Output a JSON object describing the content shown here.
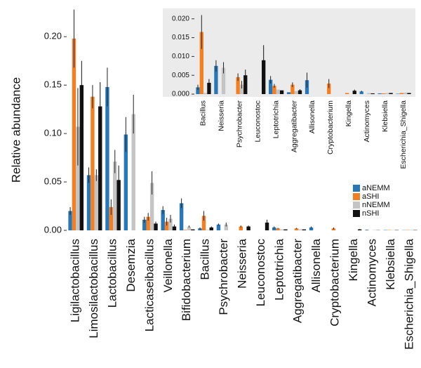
{
  "chart_data": [
    {
      "type": "bar",
      "y_label": "Relative abundance",
      "categories": [
        "Ligilactobacillus",
        "Limosilactobacillus",
        "Lactobacillus",
        "Desemzia",
        "Lacticaseibacillus",
        "Veillonella",
        "Bifidobacterium",
        "Bacillus",
        "Psychrobacter",
        "Neisseria",
        "Leuconostoc",
        "Leptotrichia",
        "Aggregatibacter",
        "Allisonella",
        "Cryptobacterium",
        "Kingella",
        "Actinomyces",
        "Klebsiella",
        "Escherichia_Shigella"
      ],
      "series": [
        {
          "name": "aNEMM",
          "color": "#2878b8",
          "values": [
            0.02,
            0.057,
            0.148,
            0.099,
            0.011,
            0.021,
            0.028,
            0.002,
            0.006,
            0,
            0,
            0.003,
            0,
            0.003,
            0,
            0,
            0.0005,
            0.0003,
            0.0002
          ],
          "errors": [
            0.004,
            0.008,
            0.02,
            0.018,
            0.003,
            0.004,
            0.005,
            0.001,
            0.001,
            0,
            0,
            0.001,
            0,
            0.001,
            0,
            0,
            0.0002,
            0,
            0
          ]
        },
        {
          "name": "aSHI",
          "color": "#f57f20",
          "values": [
            0.198,
            0.138,
            0.024,
            0,
            0.014,
            0.009,
            0.0005,
            0.015,
            0,
            0.004,
            0,
            0.002,
            0.002,
            0,
            0.002,
            0,
            0,
            0.0003,
            0.0003
          ],
          "errors": [
            0.03,
            0.012,
            0.008,
            0,
            0.004,
            0.004,
            0,
            0.005,
            0,
            0.001,
            0,
            0.0005,
            0.0005,
            0,
            0.001,
            0,
            0,
            0,
            0
          ]
        },
        {
          "name": "nNEMM",
          "color": "#c4c4c4",
          "values": [
            0.107,
            0.057,
            0.071,
            0.12,
            0.049,
            0.012,
            0.004,
            0.0005,
            0.006,
            0,
            0,
            0.001,
            0.001,
            0,
            0,
            0,
            0.0003,
            0.0003,
            0.0004
          ],
          "errors": [
            0.04,
            0.006,
            0.012,
            0.02,
            0.012,
            0.004,
            0.001,
            0,
            0.002,
            0,
            0,
            0,
            0,
            0,
            0,
            0,
            0,
            0,
            0
          ]
        },
        {
          "name": "nSHI",
          "color": "#111111",
          "values": [
            0.15,
            0.128,
            0.052,
            0,
            0.007,
            0.004,
            0.001,
            0.003,
            0,
            0.004,
            0.008,
            0.001,
            0.001,
            0,
            0,
            0.001,
            0.0002,
            0.0003,
            0.0003
          ],
          "errors": [
            0.025,
            0.025,
            0.015,
            0,
            0.002,
            0.002,
            0,
            0.001,
            0,
            0.001,
            0.003,
            0,
            0,
            0,
            0,
            0.0003,
            0,
            0,
            0
          ]
        }
      ],
      "ylim": [
        0,
        0.227
      ],
      "yticks": [
        {
          "value": 0,
          "label": "0.00"
        },
        {
          "value": 0.05,
          "label": "0.05"
        },
        {
          "value": 0.1,
          "label": "0.10"
        },
        {
          "value": 0.15,
          "label": "0.15"
        },
        {
          "value": 0.2,
          "label": "0.20"
        }
      ],
      "legend": "right"
    },
    {
      "type": "bar",
      "categories": [
        "Bacillus",
        "Neisseria",
        "Psychrobacter",
        "Leuconostoc",
        "Leptotrichia",
        "Aggregatibacter",
        "Allisonella",
        "Cryptobacterium",
        "Kingella",
        "Actinomyces",
        "Klebsiella",
        "Escherichia_Shigella"
      ],
      "series": [
        {
          "color": "#2878b8",
          "values": [
            0.0018,
            0.0075,
            0,
            0,
            0.0038,
            0.0005,
            0.0037,
            0,
            0,
            0.0007,
            0.0002,
            0.0001
          ],
          "errors": [
            0.0007,
            0.0015,
            0,
            0,
            0.001,
            0,
            0.002,
            0,
            0,
            0.0002,
            0,
            0
          ]
        },
        {
          "color": "#f57f20",
          "values": [
            0.0165,
            0,
            0.0045,
            0,
            0.0022,
            0.0025,
            0,
            0.0028,
            0.0003,
            0,
            0.0002,
            0.0003
          ],
          "errors": [
            0.0045,
            0,
            0.001,
            0,
            0.0005,
            0.0006,
            0,
            0.0012,
            0,
            0,
            0,
            0
          ]
        },
        {
          "color": "#c4c4c4",
          "values": [
            0.0003,
            0.007,
            0.0025,
            0,
            0.0012,
            0.0008,
            0,
            0,
            0,
            0.0003,
            0.0003,
            0.0004
          ],
          "errors": [
            0,
            0.0015,
            0.001,
            0,
            0,
            0,
            0,
            0,
            0,
            0,
            0,
            0
          ]
        },
        {
          "color": "#111111",
          "values": [
            0.003,
            0,
            0.005,
            0.009,
            0.001,
            0.001,
            0,
            0,
            0.0009,
            0.0002,
            0.0003,
            0.0003
          ],
          "errors": [
            0.001,
            0,
            0.0015,
            0.004,
            0,
            0.0003,
            0,
            0,
            0.0003,
            0,
            0,
            0
          ]
        }
      ],
      "ylim": [
        0,
        0.0222
      ],
      "yticks": [
        {
          "value": 0,
          "label": "0.000"
        },
        {
          "value": 0.005,
          "label": "0.005"
        },
        {
          "value": 0.01,
          "label": "0.010"
        },
        {
          "value": 0.015,
          "label": "0.015"
        },
        {
          "value": 0.02,
          "label": "0.020"
        }
      ],
      "background": "#ebebeb"
    }
  ]
}
